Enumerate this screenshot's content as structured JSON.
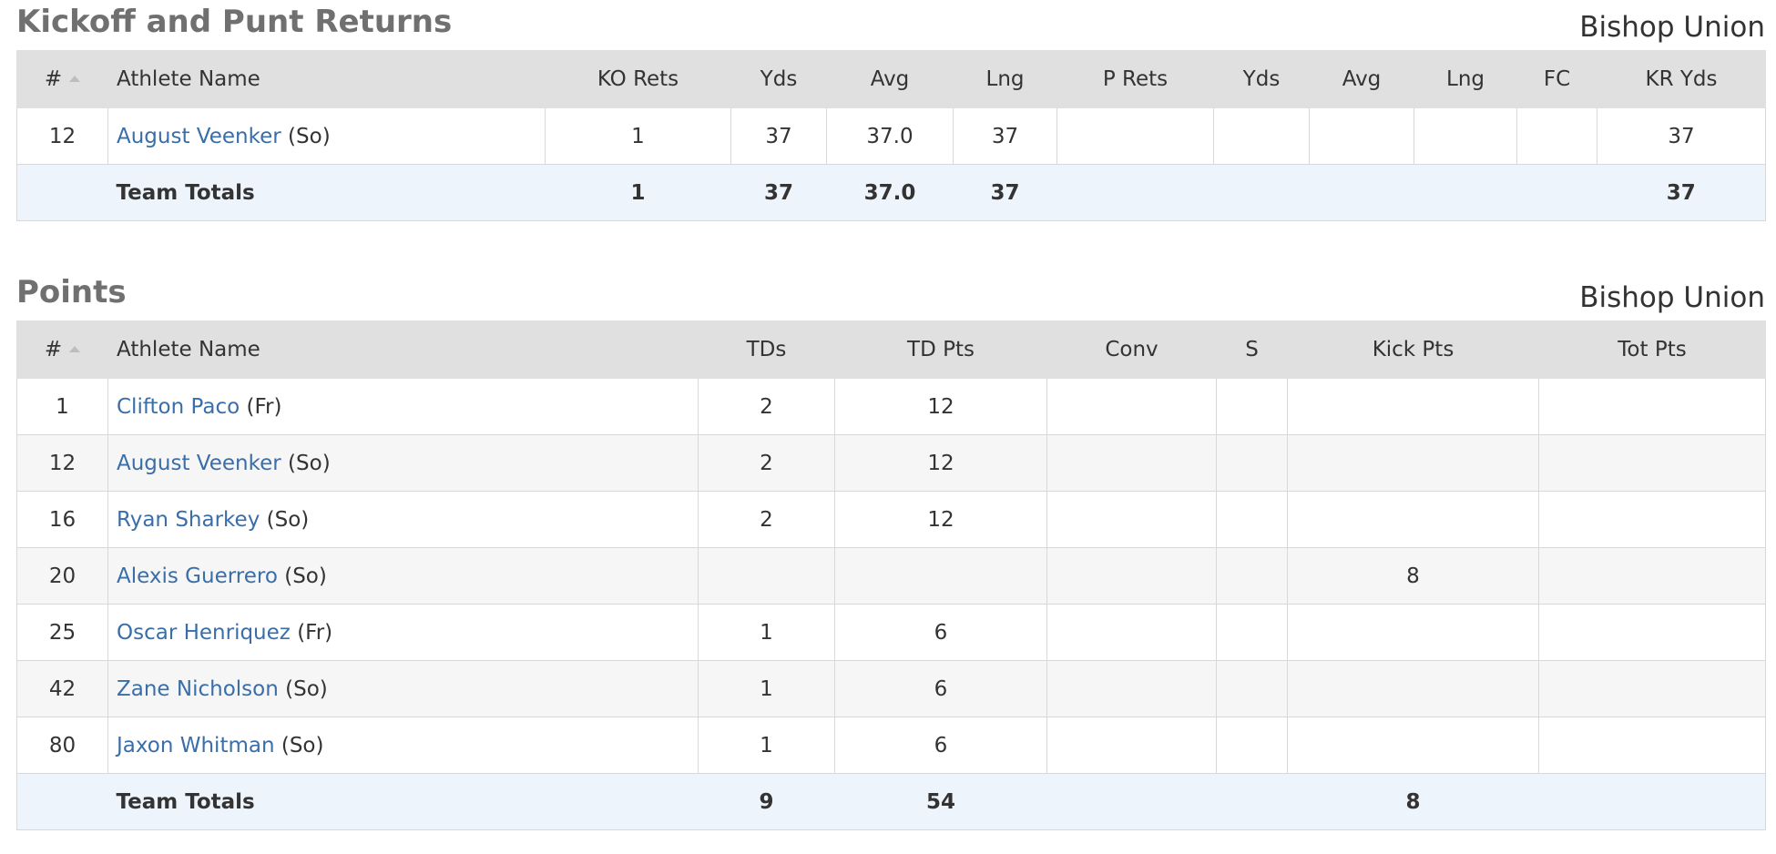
{
  "returns": {
    "title": "Kickoff and Punt Returns",
    "team": "Bishop Union",
    "headers": [
      "#",
      "Athlete Name",
      "KO Rets",
      "Yds",
      "Avg",
      "Lng",
      "P Rets",
      "Yds",
      "Avg",
      "Lng",
      "FC",
      "KR Yds"
    ],
    "rows": [
      {
        "num": "12",
        "name": "August Veenker",
        "cls": "(So)",
        "cells": [
          "1",
          "37",
          "37.0",
          "37",
          "",
          "",
          "",
          "",
          "",
          "37"
        ]
      }
    ],
    "totals": {
      "label": "Team Totals",
      "cells": [
        "1",
        "37",
        "37.0",
        "37",
        "",
        "",
        "",
        "",
        "",
        "37"
      ]
    }
  },
  "points": {
    "title": "Points",
    "team": "Bishop Union",
    "headers": [
      "#",
      "Athlete Name",
      "TDs",
      "TD Pts",
      "Conv",
      "S",
      "Kick Pts",
      "Tot Pts"
    ],
    "rows": [
      {
        "num": "1",
        "name": "Clifton Paco",
        "cls": "(Fr)",
        "cells": [
          "2",
          "12",
          "",
          "",
          "",
          ""
        ]
      },
      {
        "num": "12",
        "name": "August Veenker",
        "cls": "(So)",
        "cells": [
          "2",
          "12",
          "",
          "",
          "",
          ""
        ]
      },
      {
        "num": "16",
        "name": "Ryan Sharkey",
        "cls": "(So)",
        "cells": [
          "2",
          "12",
          "",
          "",
          "",
          ""
        ]
      },
      {
        "num": "20",
        "name": "Alexis Guerrero",
        "cls": "(So)",
        "cells": [
          "",
          "",
          "",
          "",
          "8",
          ""
        ]
      },
      {
        "num": "25",
        "name": "Oscar Henriquez",
        "cls": "(Fr)",
        "cells": [
          "1",
          "6",
          "",
          "",
          "",
          ""
        ]
      },
      {
        "num": "42",
        "name": "Zane Nicholson",
        "cls": "(So)",
        "cells": [
          "1",
          "6",
          "",
          "",
          "",
          ""
        ]
      },
      {
        "num": "80",
        "name": "Jaxon Whitman",
        "cls": "(So)",
        "cells": [
          "1",
          "6",
          "",
          "",
          "",
          ""
        ]
      }
    ],
    "totals": {
      "label": "Team Totals",
      "cells": [
        "9",
        "54",
        "",
        "",
        "8",
        ""
      ]
    }
  },
  "icons": {
    "sort": "sort-ascending-icon"
  }
}
